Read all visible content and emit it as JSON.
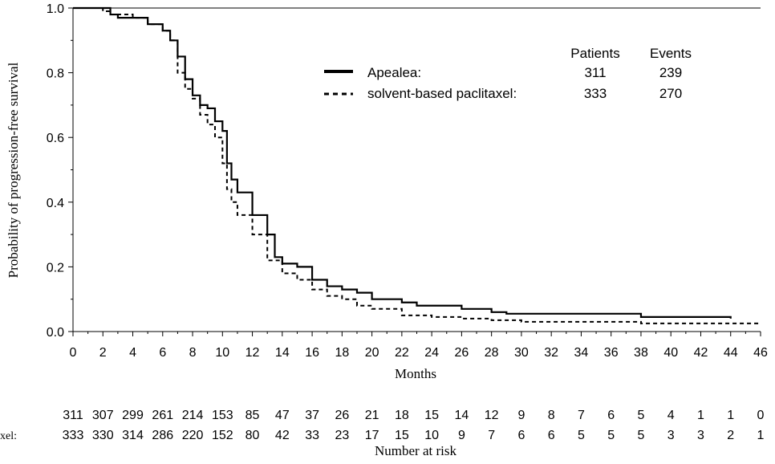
{
  "chart_data": {
    "type": "line",
    "title": "",
    "xlabel": "Months",
    "ylabel": "Probability of progression-free survival",
    "xlim": [
      0,
      46
    ],
    "ylim": [
      0,
      1
    ],
    "x_ticks": [
      0,
      2,
      4,
      6,
      8,
      10,
      12,
      14,
      16,
      18,
      20,
      22,
      24,
      26,
      28,
      30,
      32,
      34,
      36,
      38,
      40,
      42,
      44,
      46
    ],
    "x_tick_labels": [
      "0",
      "2",
      "4",
      "6",
      "8",
      "10",
      "12",
      "14",
      "16",
      "18",
      "20",
      "22",
      "24",
      "26",
      "28",
      "30",
      "32",
      "34",
      "36",
      "38",
      "40",
      "42",
      "44",
      "46"
    ],
    "y_ticks": [
      0,
      0.2,
      0.4,
      0.6,
      0.8,
      1.0
    ],
    "y_tick_labels": [
      "0.0",
      "0.2",
      "0.4",
      "0.6",
      "0.8",
      "1.0"
    ],
    "legend": {
      "placement": "top-right",
      "headers": {
        "patients": "Patients",
        "events": "Events"
      },
      "entries": [
        {
          "label": "Apealea:",
          "patients": "311",
          "events": "239",
          "style": "solid"
        },
        {
          "label": "solvent-based paclitaxel:",
          "patients": "333",
          "events": "270",
          "style": "dashed"
        }
      ]
    },
    "series": [
      {
        "name": "Apealea",
        "style": "solid",
        "x": [
          0,
          2,
          2.5,
          3,
          4,
          5,
          6,
          6.5,
          7,
          7.5,
          8,
          8.5,
          9,
          9.5,
          10,
          10.3,
          10.6,
          11,
          12,
          13,
          13.5,
          14,
          15,
          16,
          17,
          18,
          19,
          20,
          22,
          23,
          26,
          28,
          29,
          38,
          44
        ],
        "y": [
          1.0,
          1.0,
          0.98,
          0.97,
          0.97,
          0.95,
          0.93,
          0.9,
          0.85,
          0.78,
          0.73,
          0.7,
          0.69,
          0.65,
          0.62,
          0.52,
          0.47,
          0.43,
          0.36,
          0.3,
          0.23,
          0.21,
          0.2,
          0.16,
          0.14,
          0.13,
          0.12,
          0.1,
          0.09,
          0.08,
          0.07,
          0.06,
          0.055,
          0.045,
          0.04
        ]
      },
      {
        "name": "solvent-based paclitaxel",
        "style": "dashed",
        "x": [
          0,
          2,
          2.5,
          3,
          4,
          5,
          6,
          6.5,
          7,
          7.5,
          8,
          8.5,
          9,
          9.5,
          10,
          10.3,
          10.6,
          11,
          12,
          13,
          14,
          15,
          16,
          17,
          18,
          19,
          20,
          22,
          24,
          26,
          28,
          30,
          35,
          38,
          46
        ],
        "y": [
          1.0,
          0.99,
          0.98,
          0.98,
          0.97,
          0.95,
          0.93,
          0.9,
          0.8,
          0.75,
          0.72,
          0.67,
          0.64,
          0.6,
          0.52,
          0.44,
          0.4,
          0.36,
          0.3,
          0.22,
          0.18,
          0.16,
          0.13,
          0.11,
          0.1,
          0.08,
          0.07,
          0.05,
          0.045,
          0.04,
          0.035,
          0.03,
          0.03,
          0.025,
          0.025
        ]
      }
    ],
    "risk_table": {
      "title": "Number at risk",
      "rows": [
        {
          "label": "",
          "values": [
            "311",
            "307",
            "299",
            "261",
            "214",
            "153",
            "85",
            "47",
            "37",
            "26",
            "21",
            "18",
            "15",
            "14",
            "12",
            "9",
            "8",
            "7",
            "6",
            "5",
            "4",
            "1",
            "1",
            "0"
          ]
        },
        {
          "label": "xel:",
          "values": [
            "333",
            "330",
            "314",
            "286",
            "220",
            "152",
            "80",
            "42",
            "33",
            "23",
            "17",
            "15",
            "10",
            "9",
            "7",
            "6",
            "6",
            "5",
            "5",
            "5",
            "3",
            "3",
            "2",
            "1"
          ]
        }
      ]
    }
  },
  "colors": {
    "line": "#000000",
    "background": "#ffffff"
  }
}
